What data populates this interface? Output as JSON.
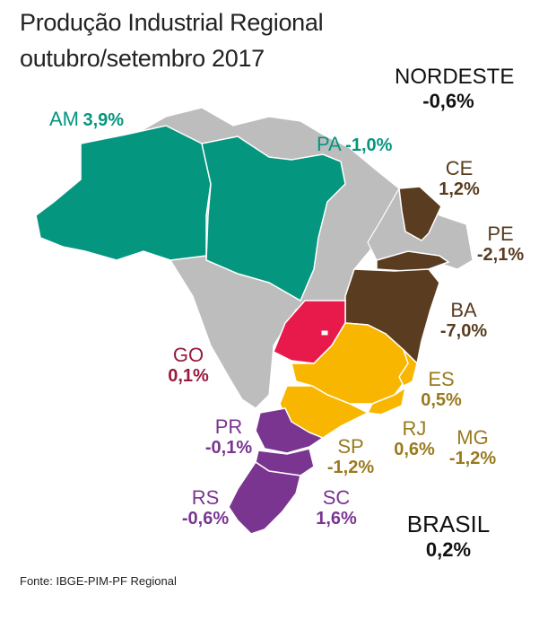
{
  "title_line1": "Produção Industrial Regional",
  "title_line2": "outubro/setembro 2017",
  "source": "Fonte: IBGE-PIM-PF Regional",
  "colors": {
    "green": "#05967f",
    "brown": "#5a3c20",
    "purple": "#7a3590",
    "red": "#e8194b",
    "yellow": "#f9b600",
    "gray": "#bdbdbd",
    "gold_text": "#9a7a1f",
    "dark_red_text": "#9a1a3c"
  },
  "regions": {
    "nordeste": {
      "name": "NORDESTE",
      "value": "-0,6%"
    },
    "brasil": {
      "name": "BRASIL",
      "value": "0,2%"
    },
    "am": {
      "name": "AM",
      "value": "3,9%"
    },
    "pa": {
      "name": "PA",
      "value": "-1,0%"
    },
    "ce": {
      "name": "CE",
      "value": "1,2%"
    },
    "pe": {
      "name": "PE",
      "value": "-2,1%"
    },
    "ba": {
      "name": "BA",
      "value": "-7,0%"
    },
    "go": {
      "name": "GO",
      "value": "0,1%"
    },
    "es": {
      "name": "ES",
      "value": "0,5%"
    },
    "rj": {
      "name": "RJ",
      "value": "0,6%"
    },
    "mg": {
      "name": "MG",
      "value": "-1,2%"
    },
    "sp": {
      "name": "SP",
      "value": "-1,2%"
    },
    "pr": {
      "name": "PR",
      "value": "-0,1%"
    },
    "sc": {
      "name": "SC",
      "value": "1,6%"
    },
    "rs": {
      "name": "RS",
      "value": "-0,6%"
    }
  }
}
